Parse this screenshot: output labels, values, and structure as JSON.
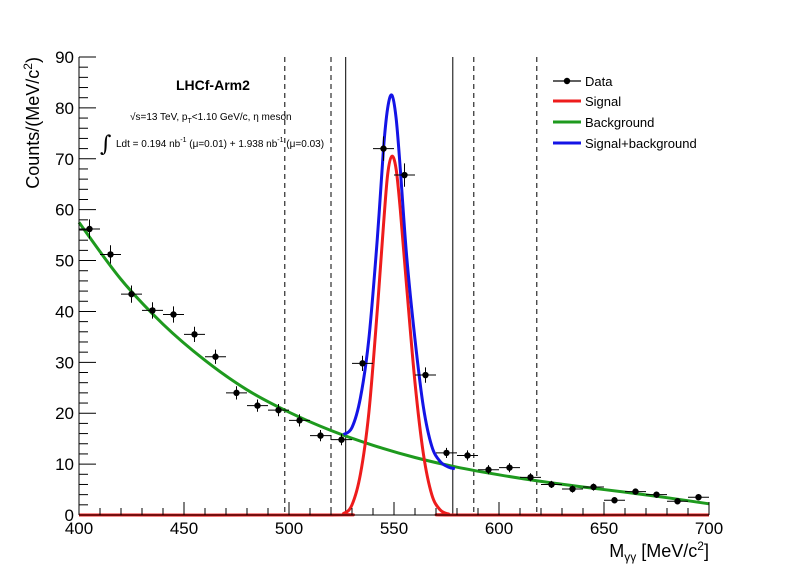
{
  "chart_data": {
    "type": "line",
    "xlabel": "M",
    "xlabel_sub": "γγ",
    "xlabel_unit_pre": " [MeV/c",
    "xlabel_unit_sup": "2",
    "xlabel_unit_post": "]",
    "ylabel": "Counts/(MeV/c",
    "ylabel_sup": "2",
    "ylabel_post": ")",
    "xlim": [
      400,
      700
    ],
    "ylim": [
      0,
      90
    ],
    "xticks": [
      400,
      450,
      500,
      550,
      600,
      650,
      700
    ],
    "yticks": [
      0,
      10,
      20,
      30,
      40,
      50,
      60,
      70,
      80,
      90
    ],
    "xtick_labels": [
      "400",
      "450",
      "500",
      "550",
      "600",
      "650",
      "700"
    ],
    "ytick_labels": [
      "0",
      "10",
      "20",
      "30",
      "40",
      "50",
      "60",
      "70",
      "80",
      "90"
    ],
    "grid": false,
    "legend_position": "top-right",
    "annotations": {
      "title": "LHCf-Arm2",
      "line1_sqrt": "√s",
      "line1_rest": "=13 TeV, p",
      "line1_sub": "T",
      "line1_tail": "<1.10 GeV/c, η meson",
      "line2_int": "∫",
      "line2_a": "Ldt = 0.194 nb",
      "line2_sup1": "-1",
      "line2_b": " (μ=0.01) + 1.938 nb",
      "line2_sup2": "-1",
      "line2_c": " (μ=0.03)"
    },
    "vertical_lines": {
      "solid": [
        527,
        578
      ],
      "dashed": [
        498,
        520,
        588,
        618
      ]
    },
    "series": [
      {
        "name": "Data",
        "kind": "points",
        "color": "#000000",
        "x": [
          405,
          415,
          425,
          435,
          445,
          455,
          465,
          475,
          485,
          495,
          505,
          515,
          525,
          535,
          545,
          555,
          565,
          575,
          585,
          595,
          605,
          615,
          625,
          635,
          645,
          655,
          665,
          675,
          685,
          695
        ],
        "y": [
          56.2,
          51.2,
          43.4,
          40.2,
          39.4,
          35.5,
          31.1,
          24.0,
          21.5,
          20.6,
          18.6,
          15.6,
          14.8,
          29.8,
          72.0,
          66.8,
          27.5,
          12.2,
          11.7,
          8.9,
          9.3,
          7.4,
          6.0,
          5.1,
          5.5,
          2.9,
          4.6,
          4.0,
          2.7,
          3.5
        ],
        "yerr": [
          1.9,
          1.8,
          1.7,
          1.6,
          1.6,
          1.5,
          1.4,
          1.3,
          1.2,
          1.2,
          1.2,
          1.1,
          1.1,
          1.5,
          2.4,
          2.3,
          1.5,
          1.0,
          1.0,
          0.9,
          0.9,
          0.8,
          0.7,
          0.7,
          0.7,
          0.5,
          0.6,
          0.6,
          0.5,
          0.6
        ],
        "xerr": 5
      },
      {
        "name": "Signal",
        "kind": "curve",
        "color": "#ee1c1c",
        "x": [
          400,
          520,
          526,
          530,
          534,
          538,
          542,
          545,
          547,
          549,
          551,
          553,
          556,
          560,
          564,
          568,
          572,
          576,
          580,
          700
        ],
        "y": [
          0,
          0,
          0.3,
          2,
          8,
          20,
          40,
          57,
          67,
          70.5,
          68,
          60,
          45,
          26,
          12,
          4,
          1,
          0.2,
          0,
          0
        ]
      },
      {
        "name": "Background",
        "kind": "curve",
        "color": "#1e9a1e",
        "x": [
          400,
          420,
          440,
          460,
          480,
          500,
          520,
          540,
          560,
          580,
          600,
          620,
          640,
          660,
          680,
          700
        ],
        "y": [
          57.5,
          46.3,
          37.5,
          30.4,
          24.6,
          20.2,
          16.6,
          13.7,
          11.3,
          9.4,
          7.9,
          6.6,
          5.5,
          4.5,
          3.4,
          2.2
        ]
      },
      {
        "name": "Signal+background",
        "kind": "curve",
        "color": "#1414e6",
        "x": [
          526,
          530,
          534,
          538,
          542,
          545,
          547,
          549,
          551,
          553,
          556,
          560,
          564,
          568,
          572,
          576,
          579
        ],
        "y": [
          15.8,
          17.2,
          23,
          34.5,
          54,
          72,
          80,
          82.5,
          78,
          68,
          51,
          34.5,
          21.2,
          13.5,
          10.5,
          9.4,
          9.1
        ]
      }
    ]
  }
}
